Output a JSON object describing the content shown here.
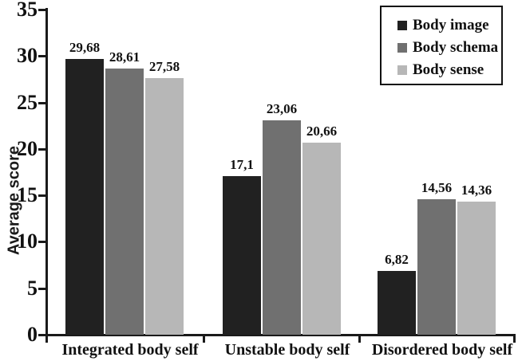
{
  "chart_data": {
    "type": "bar",
    "title": "",
    "xlabel": "",
    "ylabel": "Average score",
    "ylim": [
      0,
      35
    ],
    "yticks": [
      0,
      5,
      10,
      15,
      20,
      25,
      30,
      35
    ],
    "grid": false,
    "legend_position": "top-right",
    "decimal_separator": ",",
    "axis_color": "#1a1a1a",
    "categories": [
      "Integrated body self",
      "Unstable body self",
      "Disordered body self"
    ],
    "series": [
      {
        "name": "Body image",
        "color": "#212121",
        "values": [
          29.68,
          17.1,
          6.82
        ],
        "labels": [
          "29,68",
          "17,1",
          "6,82"
        ]
      },
      {
        "name": "Body schema",
        "color": "#707070",
        "values": [
          28.61,
          23.06,
          14.56
        ],
        "labels": [
          "28,61",
          "23,06",
          "14,56"
        ]
      },
      {
        "name": "Body sense",
        "color": "#b7b7b7",
        "values": [
          27.58,
          20.66,
          14.36
        ],
        "labels": [
          "27,58",
          "20,66",
          "14,36"
        ]
      }
    ]
  }
}
